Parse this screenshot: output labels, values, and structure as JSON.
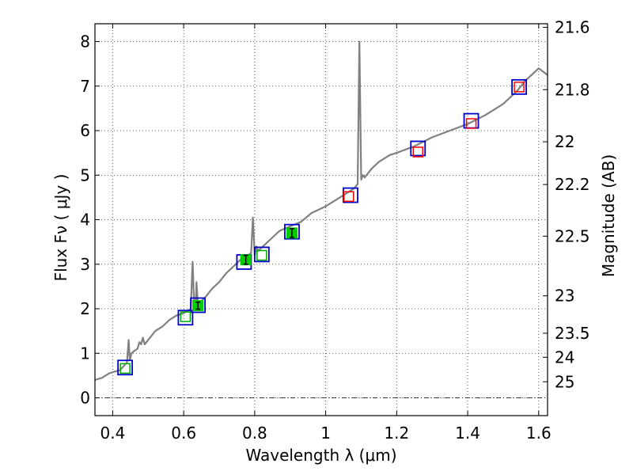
{
  "chart_data": {
    "type": "line",
    "title": "",
    "xlabel": "Wavelength  λ (μm)",
    "ylabel": "Flux  Fν  ( μJy )",
    "y2label": "Magnitude (AB)",
    "xlim": [
      0.35,
      1.625
    ],
    "ylim": [
      -0.4,
      8.4
    ],
    "grid": true,
    "x_ticks": [
      0.4,
      0.6,
      0.8,
      1.0,
      1.2,
      1.4,
      1.6
    ],
    "x_tick_labels": [
      "0.4",
      "0.6",
      "0.8",
      "1",
      "1.2",
      "1.4",
      "1.6"
    ],
    "y_ticks": [
      0,
      1,
      2,
      3,
      4,
      5,
      6,
      7,
      8
    ],
    "y_tick_labels": [
      "0",
      "1",
      "2",
      "3",
      "4",
      "5",
      "6",
      "7",
      "8"
    ],
    "y2_ticks": [
      {
        "label": "21.6",
        "flux": 8.32
      },
      {
        "label": "21.8",
        "flux": 6.92
      },
      {
        "label": "22",
        "flux": 5.75
      },
      {
        "label": "22.2",
        "flux": 4.79
      },
      {
        "label": "22.5",
        "flux": 3.63
      },
      {
        "label": "23",
        "flux": 2.29
      },
      {
        "label": "23.5",
        "flux": 1.45
      },
      {
        "label": "24",
        "flux": 0.91
      },
      {
        "label": "25",
        "flux": 0.36
      }
    ],
    "colors": {
      "spectrum": "#808080",
      "model_box": "#0000cc",
      "filter_box_red": "#ff0000",
      "filter_box_green": "#00aa00",
      "measured_fill": "#00cc00",
      "error_bar": "#000000"
    },
    "series": [
      {
        "name": "model spectrum",
        "style": "line",
        "x": [
          0.35,
          0.37,
          0.39,
          0.41,
          0.42,
          0.43,
          0.435,
          0.44,
          0.445,
          0.448,
          0.45,
          0.453,
          0.46,
          0.47,
          0.475,
          0.48,
          0.485,
          0.49,
          0.5,
          0.52,
          0.54,
          0.56,
          0.58,
          0.6,
          0.62,
          0.625,
          0.63,
          0.634,
          0.636,
          0.64,
          0.66,
          0.68,
          0.7,
          0.72,
          0.74,
          0.76,
          0.78,
          0.79,
          0.795,
          0.8,
          0.805,
          0.81,
          0.83,
          0.85,
          0.87,
          0.9,
          0.93,
          0.96,
          1.0,
          1.03,
          1.06,
          1.08,
          1.09,
          1.095,
          1.1,
          1.105,
          1.11,
          1.13,
          1.15,
          1.18,
          1.2,
          1.25,
          1.3,
          1.35,
          1.4,
          1.45,
          1.5,
          1.54,
          1.56,
          1.58,
          1.6,
          1.625
        ],
        "y": [
          0.4,
          0.45,
          0.55,
          0.6,
          0.62,
          0.7,
          0.75,
          0.78,
          1.3,
          0.85,
          0.9,
          1.0,
          1.05,
          1.1,
          1.25,
          1.2,
          1.35,
          1.2,
          1.3,
          1.5,
          1.6,
          1.75,
          1.85,
          1.9,
          2.0,
          3.05,
          2.0,
          2.05,
          2.6,
          2.1,
          2.25,
          2.45,
          2.6,
          2.8,
          2.95,
          3.1,
          3.2,
          3.25,
          4.05,
          3.2,
          3.4,
          3.3,
          3.45,
          3.6,
          3.75,
          3.85,
          3.95,
          4.15,
          4.3,
          4.45,
          4.6,
          4.7,
          4.8,
          8.0,
          4.9,
          5.0,
          4.95,
          5.15,
          5.3,
          5.45,
          5.5,
          5.65,
          5.85,
          6.0,
          6.15,
          6.35,
          6.6,
          6.9,
          7.1,
          7.25,
          7.4,
          7.25
        ]
      },
      {
        "name": "model photometry",
        "style": "blue-square",
        "x": [
          0.435,
          0.605,
          0.64,
          0.77,
          0.82,
          0.905,
          1.07,
          1.26,
          1.41,
          1.545
        ],
        "y": [
          0.68,
          1.8,
          2.08,
          3.05,
          3.22,
          3.73,
          4.55,
          5.6,
          6.22,
          6.98
        ]
      },
      {
        "name": "filter response (space)",
        "style": "red-square",
        "x": [
          1.065,
          1.26,
          1.41,
          1.545
        ],
        "y": [
          4.52,
          5.52,
          6.16,
          6.98
        ]
      },
      {
        "name": "filter response (ground)",
        "style": "green-square",
        "x": [
          0.435,
          0.605,
          0.82
        ],
        "y": [
          0.66,
          1.82,
          3.2
        ]
      },
      {
        "name": "measured flux",
        "style": "green-point-errorbar",
        "x": [
          0.64,
          0.775,
          0.905
        ],
        "y": [
          2.07,
          3.1,
          3.7
        ],
        "yerr": [
          0.08,
          0.1,
          0.1
        ]
      }
    ]
  }
}
